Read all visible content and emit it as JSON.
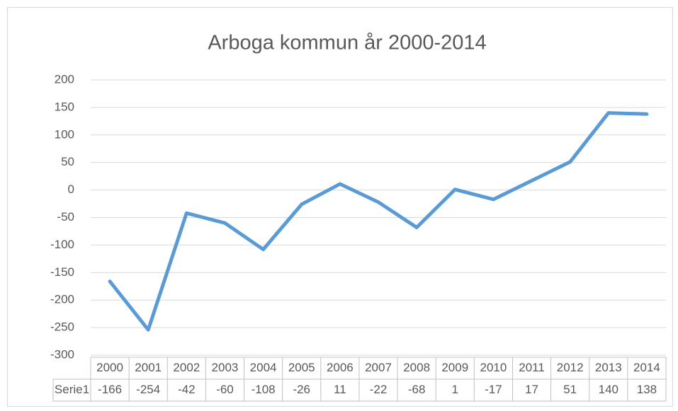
{
  "chart_data": {
    "type": "line",
    "title": "Arboga kommun år 2000-2014",
    "categories": [
      "2000",
      "2001",
      "2002",
      "2003",
      "2004",
      "2005",
      "2006",
      "2007",
      "2008",
      "2009",
      "2010",
      "2011",
      "2012",
      "2013",
      "2014"
    ],
    "series": [
      {
        "name": "Serie1",
        "color": "#5b9bd5",
        "values": [
          -166,
          -254,
          -42,
          -60,
          -108,
          -26,
          11,
          -22,
          -68,
          1,
          -17,
          17,
          51,
          140,
          138
        ]
      }
    ],
    "ylim": [
      -300,
      200
    ],
    "yticks": [
      -300,
      -250,
      -200,
      -150,
      -100,
      -50,
      0,
      50,
      100,
      150,
      200
    ],
    "grid": true,
    "data_table": true
  }
}
